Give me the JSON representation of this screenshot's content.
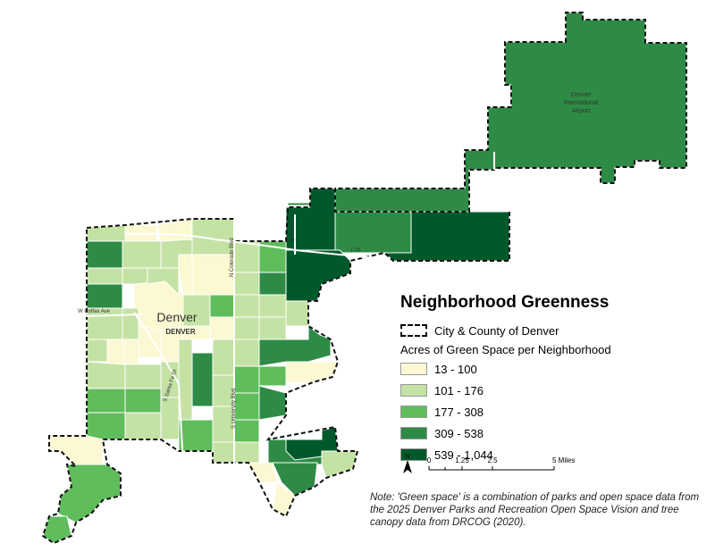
{
  "title": "Neighborhood Greenness",
  "legend": {
    "boundary_label": "City & County of Denver",
    "subtitle": "Acres of Green Space per Neighborhood",
    "classes": [
      {
        "range": "13 - 100",
        "color": "#fbf8d2"
      },
      {
        "range": "101 - 176",
        "color": "#c4e2a4"
      },
      {
        "range": "177 - 308",
        "color": "#5fbd5c"
      },
      {
        "range": "309 - 538",
        "color": "#2e8b45"
      },
      {
        "range": "539 - 1,044",
        "color": "#00592b"
      }
    ]
  },
  "map_labels": {
    "airport_line1": "Denver",
    "airport_line2": "International",
    "airport_line3": "Airport",
    "city": "Denver",
    "city_caps": "DENVER",
    "colfax": "W Colfax Ave",
    "i70": "I-70",
    "colorado_blvd": "N Colorado Blvd",
    "quebec": "Quebec St",
    "univ": "S University Blvd",
    "santa_fe": "S Santa Fe Dr"
  },
  "scale_bar": {
    "north": "N",
    "ticks": [
      "0",
      "1.25",
      "2.5",
      "5 Miles"
    ]
  },
  "note": "Note: 'Green space' is a combination of parks and open space data from the 2025 Denver Parks and Recreation Open Space Vision and tree canopy data from DRCOG (2020)."
}
